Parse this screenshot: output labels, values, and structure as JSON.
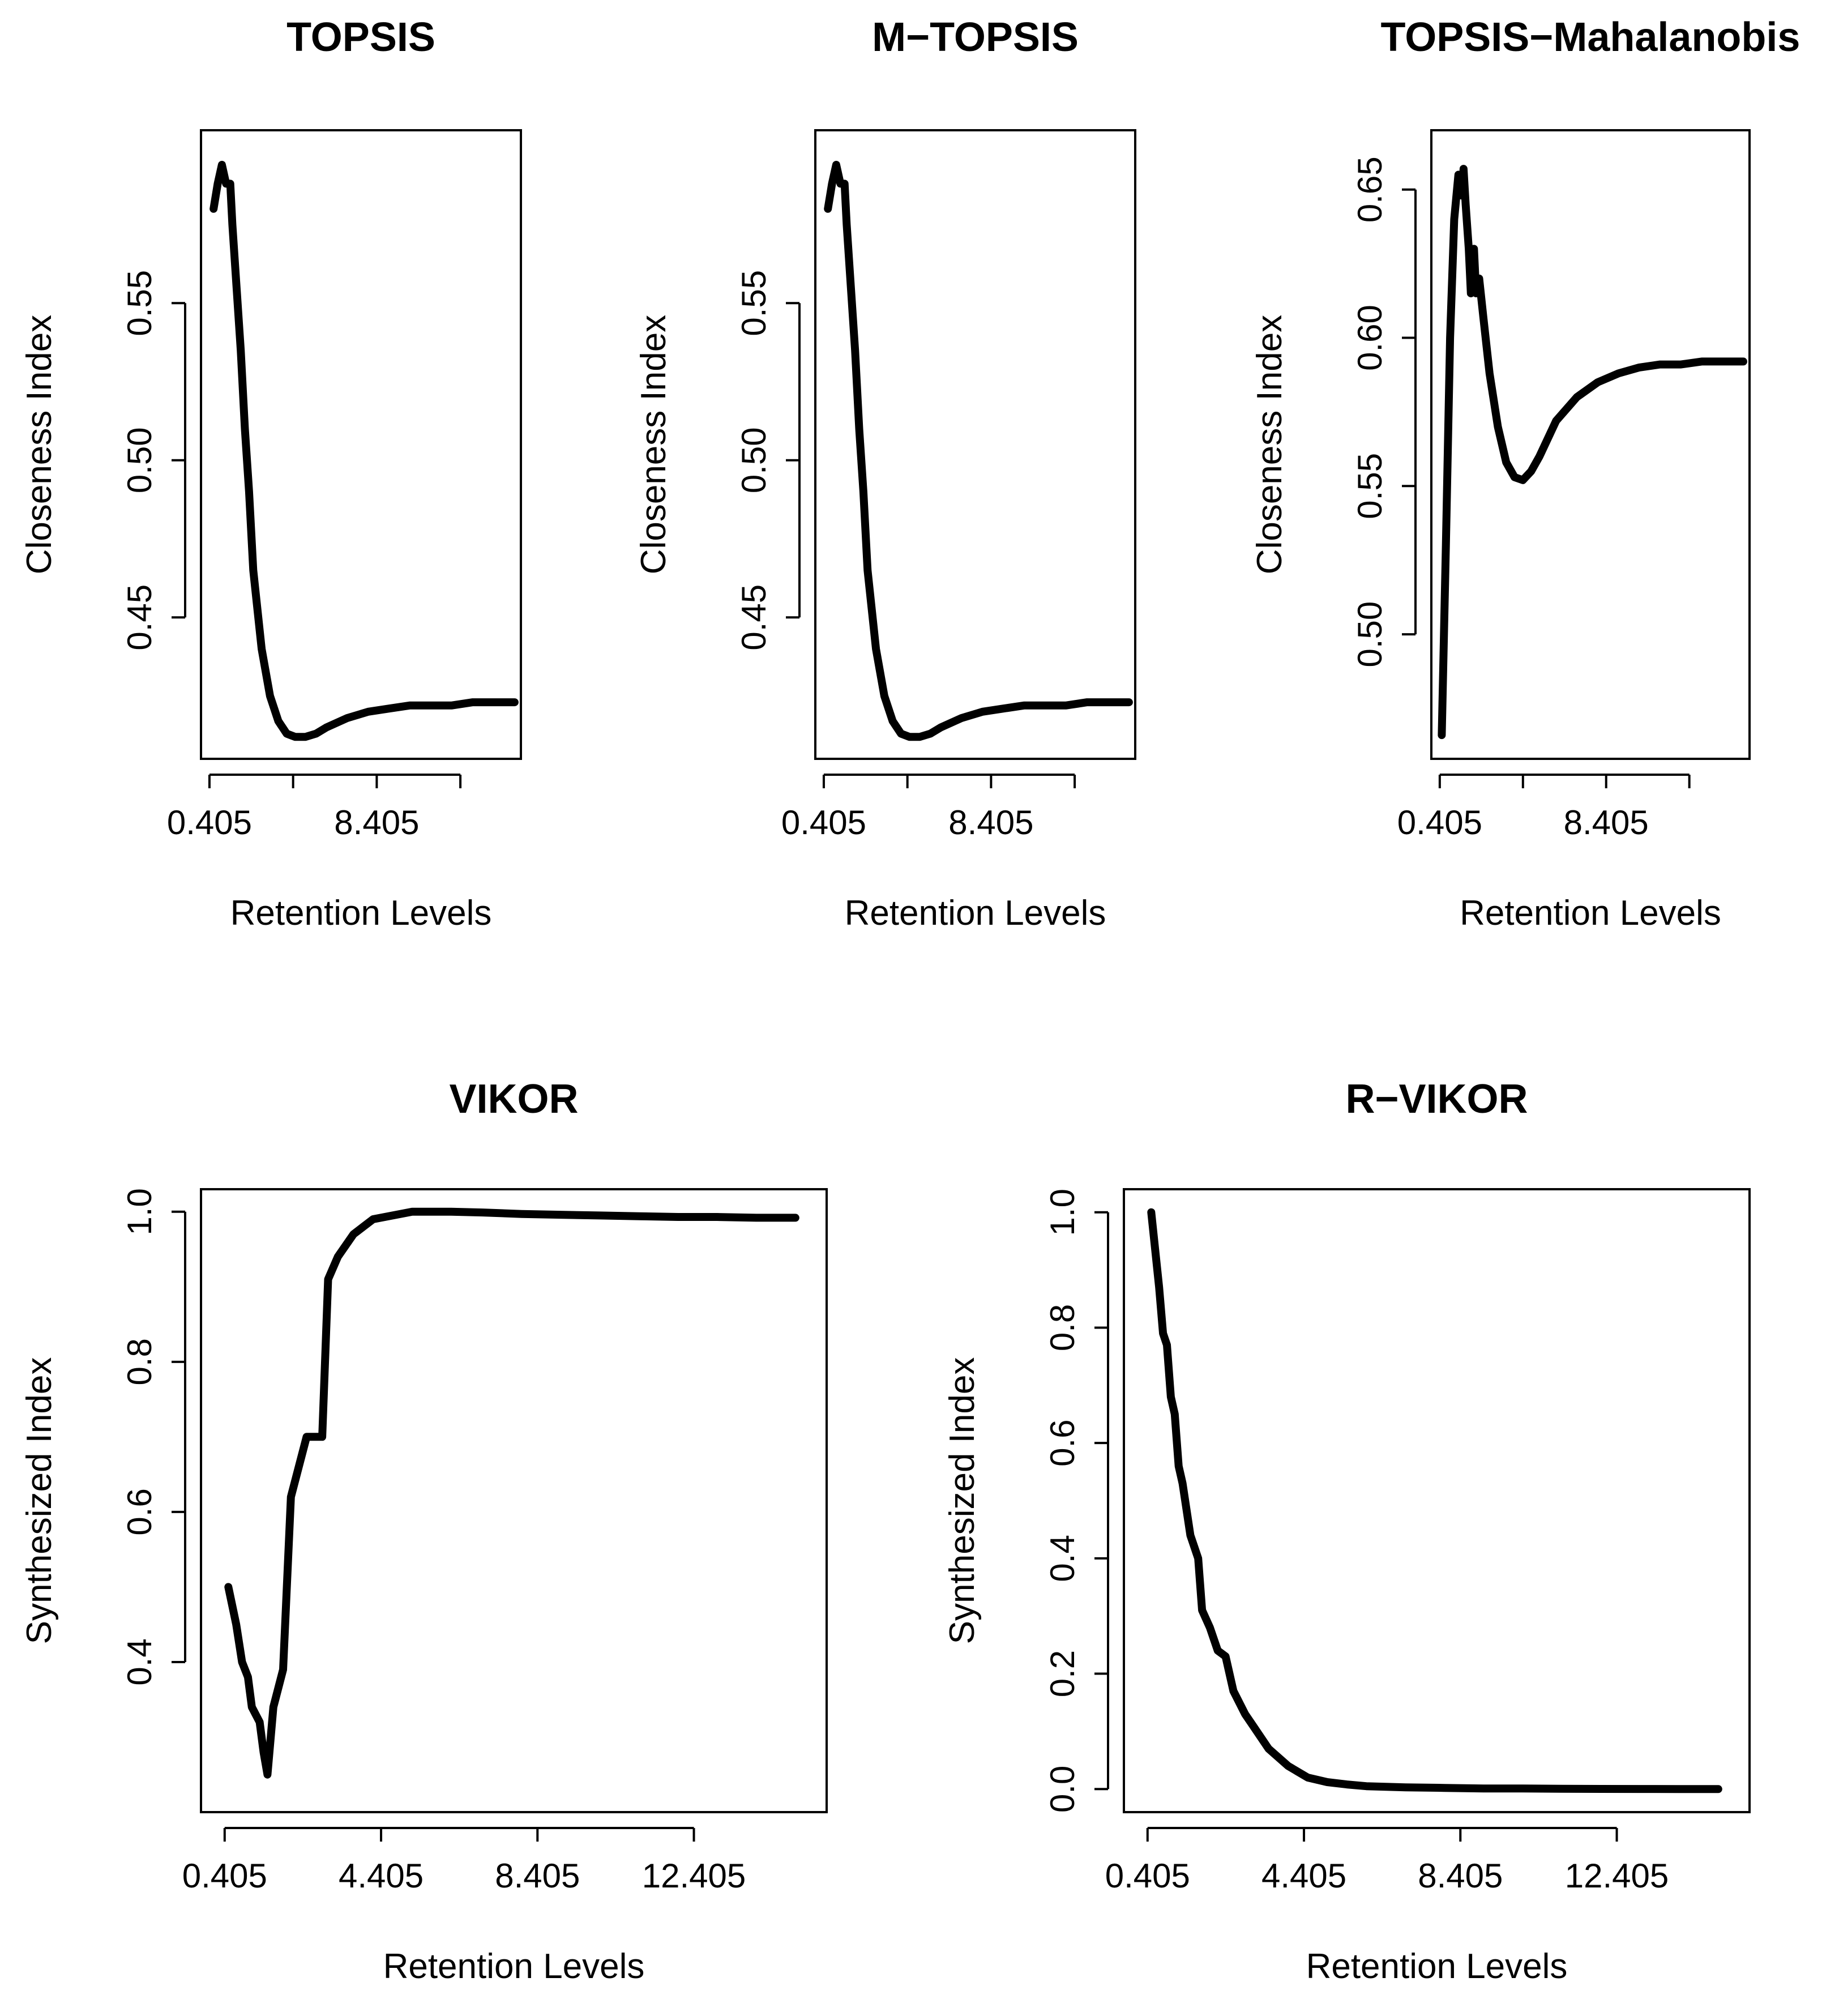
{
  "chart_data": [
    {
      "type": "line",
      "title": "TOPSIS",
      "xlabel": "Retention Levels",
      "ylabel": "Closeness Index",
      "xlim": [
        0.0,
        15.3
      ],
      "ylim": [
        0.405,
        0.605
      ],
      "x_ticks": [
        0.405,
        4.405,
        8.405,
        12.405
      ],
      "x_tick_labels": [
        "0.405",
        "8.405"
      ],
      "y_ticks": [
        0.45,
        0.5,
        0.55
      ],
      "y_tick_labels": [
        "0.45",
        "0.50",
        "0.55"
      ],
      "series": [
        {
          "name": "TOPSIS",
          "x": [
            0.6,
            0.8,
            1.0,
            1.2,
            1.4,
            1.5,
            1.7,
            1.9,
            2.1,
            2.3,
            2.5,
            2.9,
            3.3,
            3.7,
            4.1,
            4.5,
            5.0,
            5.5,
            6.0,
            7.0,
            8.0,
            9.0,
            10.0,
            11.0,
            12.0,
            13.0,
            14.0,
            15.0
          ],
          "y": [
            0.58,
            0.588,
            0.594,
            0.588,
            0.588,
            0.575,
            0.555,
            0.535,
            0.51,
            0.49,
            0.465,
            0.44,
            0.425,
            0.417,
            0.413,
            0.412,
            0.412,
            0.413,
            0.415,
            0.418,
            0.42,
            0.421,
            0.422,
            0.422,
            0.422,
            0.423,
            0.423,
            0.423
          ]
        }
      ]
    },
    {
      "type": "line",
      "title": "M−TOPSIS",
      "xlabel": "Retention Levels",
      "ylabel": "Closeness Index",
      "xlim": [
        0.0,
        15.3
      ],
      "ylim": [
        0.405,
        0.605
      ],
      "x_ticks": [
        0.405,
        4.405,
        8.405,
        12.405
      ],
      "x_tick_labels": [
        "0.405",
        "8.405"
      ],
      "y_ticks": [
        0.45,
        0.5,
        0.55
      ],
      "y_tick_labels": [
        "0.45",
        "0.50",
        "0.55"
      ],
      "series": [
        {
          "name": "M-TOPSIS",
          "x": [
            0.6,
            0.8,
            1.0,
            1.2,
            1.4,
            1.5,
            1.7,
            1.9,
            2.1,
            2.3,
            2.5,
            2.9,
            3.3,
            3.7,
            4.1,
            4.5,
            5.0,
            5.5,
            6.0,
            7.0,
            8.0,
            9.0,
            10.0,
            11.0,
            12.0,
            13.0,
            14.0,
            15.0
          ],
          "y": [
            0.58,
            0.588,
            0.594,
            0.588,
            0.588,
            0.575,
            0.555,
            0.535,
            0.51,
            0.49,
            0.465,
            0.44,
            0.425,
            0.417,
            0.413,
            0.412,
            0.412,
            0.413,
            0.415,
            0.418,
            0.42,
            0.421,
            0.422,
            0.422,
            0.422,
            0.423,
            0.423,
            0.423
          ]
        }
      ]
    },
    {
      "type": "line",
      "title": "TOPSIS−Mahalanobis",
      "xlabel": "Retention Levels",
      "ylabel": "Closeness Index",
      "xlim": [
        0.0,
        15.3
      ],
      "ylim": [
        0.458,
        0.67
      ],
      "x_ticks": [
        0.405,
        4.405,
        8.405,
        12.405
      ],
      "x_tick_labels": [
        "0.405",
        "8.405"
      ],
      "y_ticks": [
        0.5,
        0.55,
        0.6,
        0.65
      ],
      "y_tick_labels": [
        "0.50",
        "0.55",
        "0.60",
        "0.65"
      ],
      "series": [
        {
          "name": "TOPSIS-Mahalanobis",
          "x": [
            0.5,
            0.7,
            0.9,
            1.1,
            1.3,
            1.45,
            1.55,
            1.65,
            1.8,
            1.9,
            2.05,
            2.15,
            2.3,
            2.5,
            2.8,
            3.2,
            3.6,
            4.0,
            4.4,
            4.8,
            5.2,
            5.6,
            6.0,
            7.0,
            8.0,
            9.0,
            10.0,
            11.0,
            12.0,
            13.0,
            14.0,
            15.0
          ],
          "y": [
            0.466,
            0.53,
            0.6,
            0.64,
            0.655,
            0.648,
            0.657,
            0.645,
            0.63,
            0.615,
            0.63,
            0.615,
            0.62,
            0.607,
            0.588,
            0.57,
            0.558,
            0.553,
            0.552,
            0.555,
            0.56,
            0.566,
            0.572,
            0.58,
            0.585,
            0.588,
            0.59,
            0.591,
            0.591,
            0.592,
            0.592,
            0.592
          ]
        }
      ]
    },
    {
      "type": "line",
      "title": "VIKOR",
      "xlabel": "Retention Levels",
      "ylabel": "Synthesized Index",
      "xlim": [
        -0.2,
        15.8
      ],
      "ylim": [
        0.2,
        1.03
      ],
      "x_ticks": [
        0.405,
        4.405,
        8.405,
        12.405
      ],
      "x_tick_labels": [
        "0.405",
        "4.405",
        "8.405",
        "12.405"
      ],
      "y_ticks": [
        0.4,
        0.6,
        0.8,
        1.0
      ],
      "y_tick_labels": [
        "0.4",
        "0.6",
        "0.8",
        "1.0"
      ],
      "series": [
        {
          "name": "VIKOR",
          "x": [
            0.5,
            0.7,
            0.85,
            1.0,
            1.1,
            1.3,
            1.4,
            1.5,
            1.65,
            1.9,
            2.1,
            2.5,
            2.9,
            3.05,
            3.3,
            3.7,
            4.2,
            4.7,
            5.2,
            5.7,
            6.2,
            7.0,
            8.0,
            9.0,
            10.0,
            11.0,
            12.0,
            13.0,
            14.0,
            15.0
          ],
          "y": [
            0.5,
            0.45,
            0.4,
            0.38,
            0.34,
            0.32,
            0.28,
            0.25,
            0.34,
            0.39,
            0.62,
            0.7,
            0.7,
            0.91,
            0.94,
            0.97,
            0.99,
            0.995,
            1.0,
            1.0,
            1.0,
            0.999,
            0.997,
            0.996,
            0.995,
            0.994,
            0.993,
            0.993,
            0.992,
            0.992
          ]
        }
      ]
    },
    {
      "type": "line",
      "title": "R−VIKOR",
      "xlabel": "Retention Levels",
      "ylabel": "Synthesized Index",
      "xlim": [
        -0.2,
        15.8
      ],
      "ylim": [
        -0.04,
        1.04
      ],
      "x_ticks": [
        0.405,
        4.405,
        8.405,
        12.405
      ],
      "x_tick_labels": [
        "0.405",
        "4.405",
        "8.405",
        "12.405"
      ],
      "y_ticks": [
        0.0,
        0.2,
        0.4,
        0.6,
        0.8,
        1.0
      ],
      "y_tick_labels": [
        "0.0",
        "0.2",
        "0.4",
        "0.6",
        "0.8",
        "1.0"
      ],
      "series": [
        {
          "name": "R-VIKOR",
          "x": [
            0.5,
            0.7,
            0.8,
            0.9,
            1.0,
            1.1,
            1.2,
            1.3,
            1.5,
            1.7,
            1.8,
            2.0,
            2.2,
            2.4,
            2.6,
            2.9,
            3.1,
            3.5,
            4.0,
            4.5,
            5.0,
            5.5,
            6.0,
            7.0,
            8.0,
            9.0,
            10.0,
            11.0,
            12.0,
            13.0,
            14.0,
            15.0
          ],
          "y": [
            1.0,
            0.87,
            0.79,
            0.77,
            0.68,
            0.65,
            0.56,
            0.53,
            0.44,
            0.4,
            0.31,
            0.28,
            0.24,
            0.23,
            0.17,
            0.13,
            0.11,
            0.07,
            0.04,
            0.02,
            0.012,
            0.008,
            0.005,
            0.003,
            0.002,
            0.001,
            0.001,
            0.0005,
            0.0003,
            0.0002,
            0.0001,
            0.0
          ]
        }
      ]
    }
  ]
}
